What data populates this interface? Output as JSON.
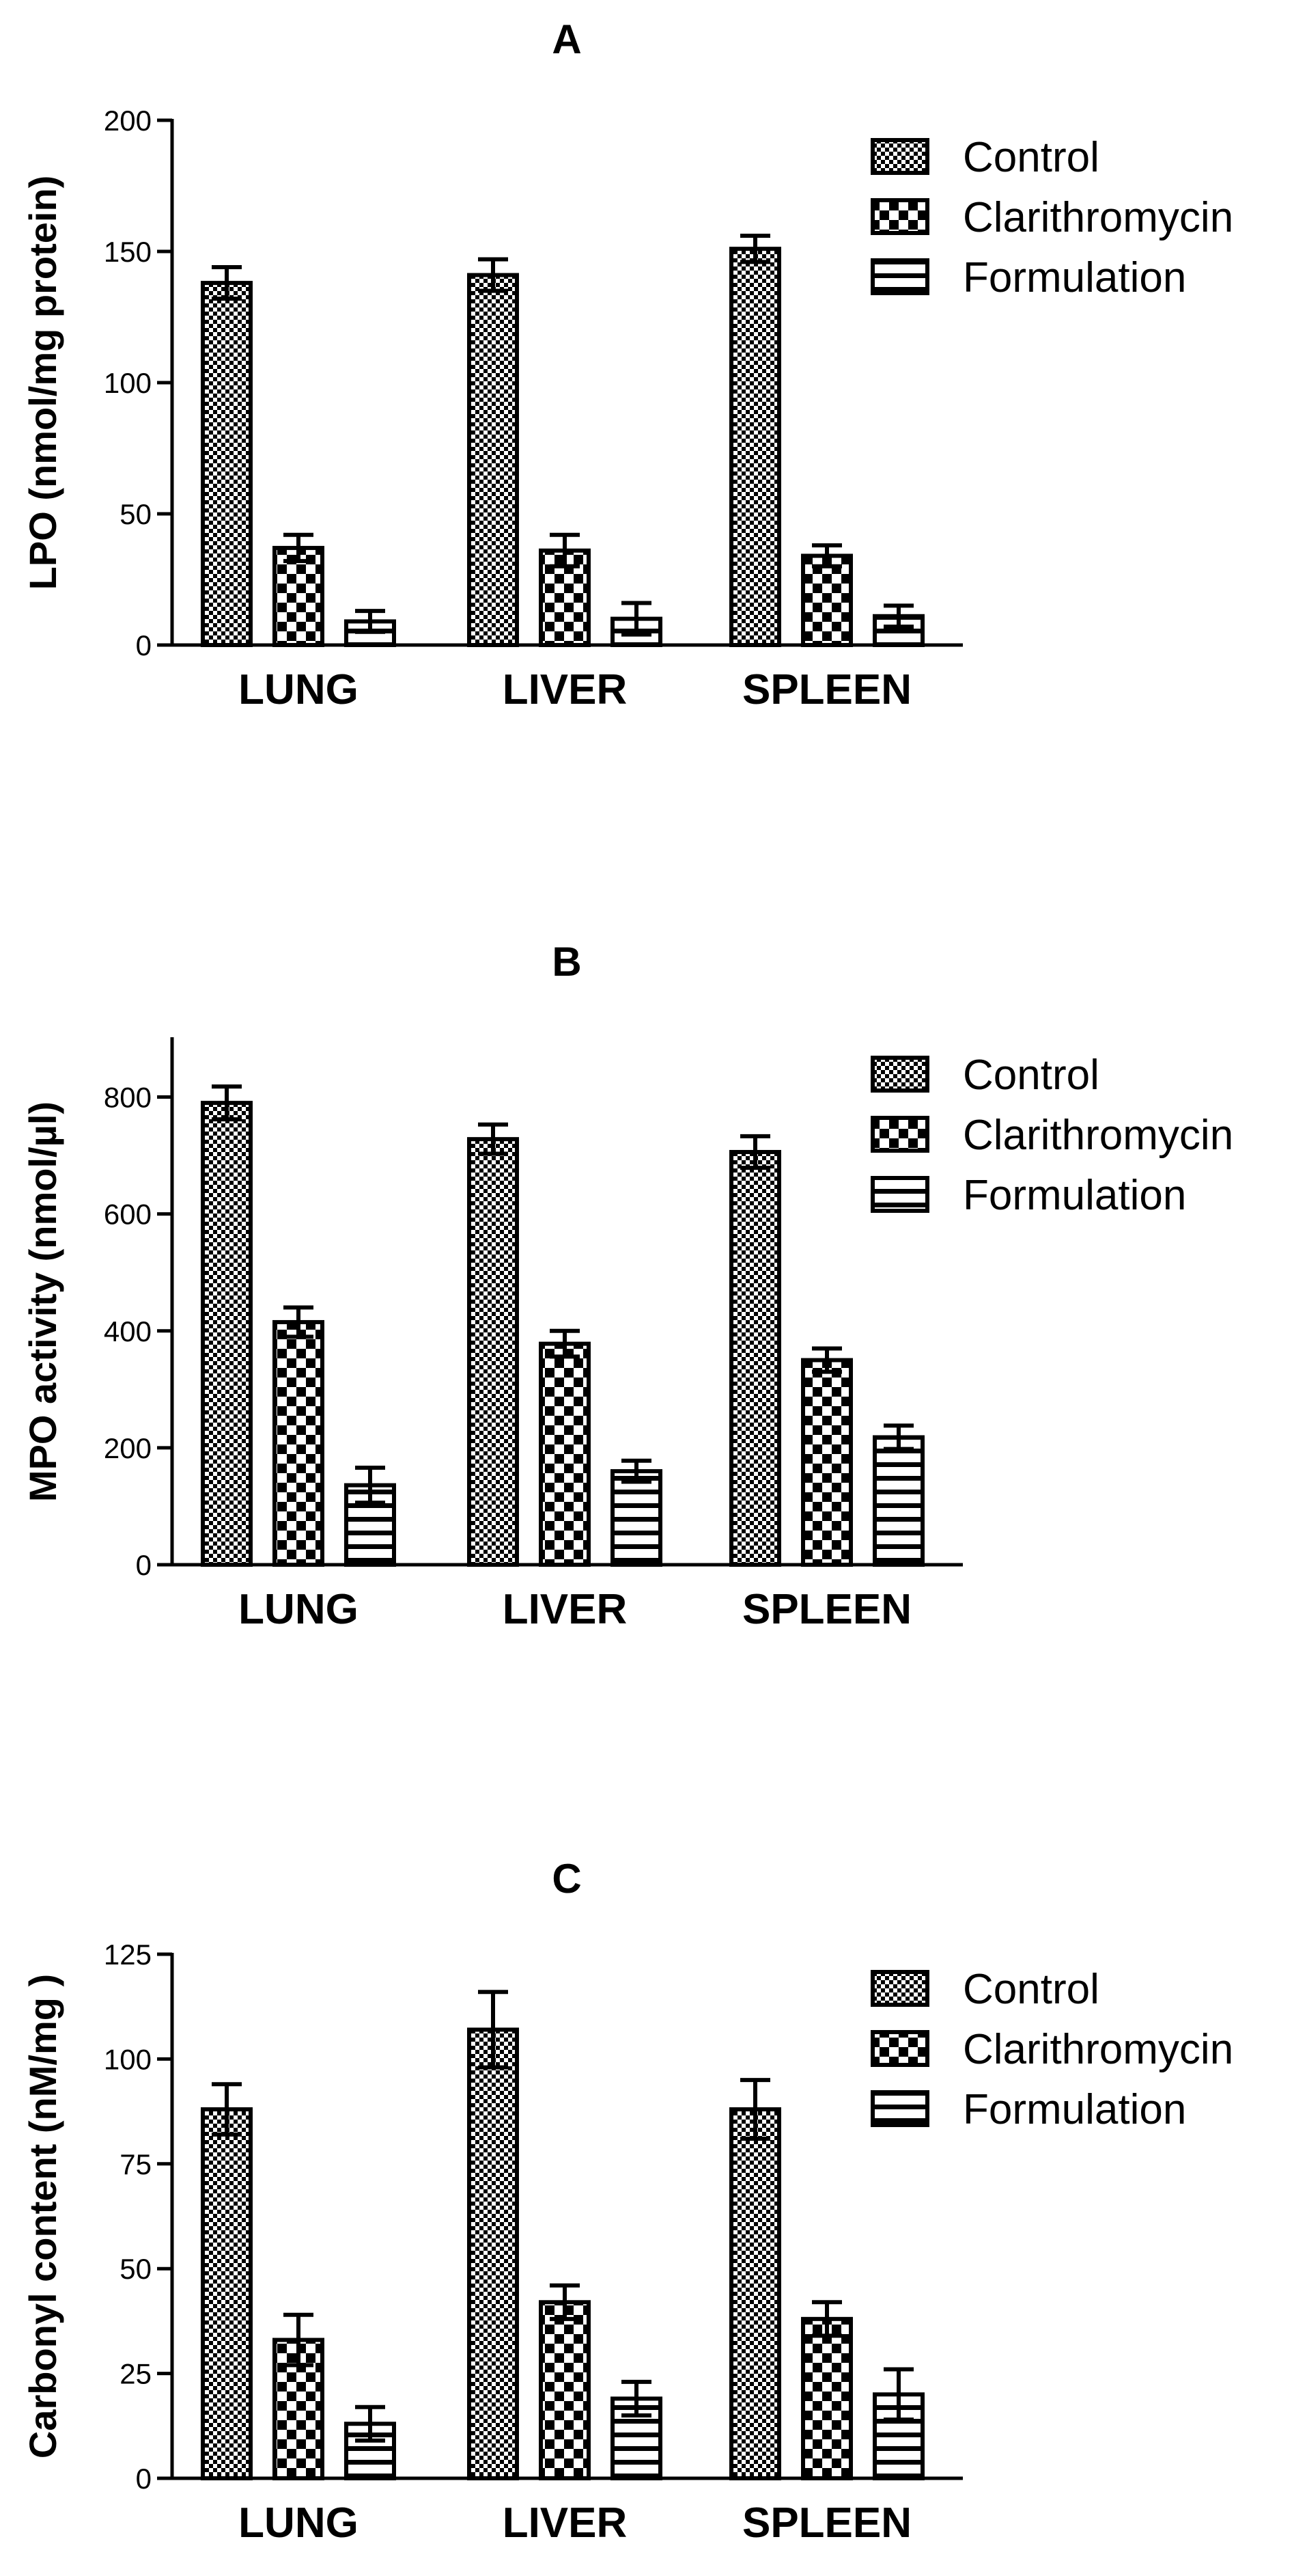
{
  "chart_data": [
    {
      "type": "bar",
      "title": "A",
      "xlabel": "",
      "ylabel": "LPO (nmol/mg protein)",
      "ylim": [
        0,
        200
      ],
      "yticks": [
        "0",
        "50",
        "100",
        "150",
        "200"
      ],
      "categories": [
        "LUNG",
        "LIVER",
        "SPLEEN"
      ],
      "series": [
        {
          "name": "Control",
          "pattern": "fine-checker",
          "values": [
            138,
            141,
            151
          ],
          "errors": [
            6,
            6,
            5
          ]
        },
        {
          "name": "Clarithromycin",
          "pattern": "coarse-checker",
          "values": [
            37,
            36,
            34
          ],
          "errors": [
            5,
            6,
            4
          ]
        },
        {
          "name": "Formulation",
          "pattern": "horizontal-stripes",
          "values": [
            9,
            10,
            11
          ],
          "errors": [
            4,
            6,
            4
          ]
        }
      ],
      "legend": "top-right",
      "grid": false
    },
    {
      "type": "bar",
      "title": "B",
      "xlabel": "",
      "ylabel": "MPO activity (nmol/µl)",
      "ylim": [
        0,
        900
      ],
      "yticks": [
        "0",
        "200",
        "400",
        "600",
        "800"
      ],
      "categories": [
        "LUNG",
        "LIVER",
        "SPLEEN"
      ],
      "series": [
        {
          "name": "Control",
          "pattern": "fine-checker",
          "values": [
            790,
            728,
            706
          ],
          "errors": [
            28,
            25,
            27
          ]
        },
        {
          "name": "Clarithromycin",
          "pattern": "coarse-checker",
          "values": [
            415,
            378,
            350
          ],
          "errors": [
            25,
            22,
            20
          ]
        },
        {
          "name": "Formulation",
          "pattern": "horizontal-stripes",
          "values": [
            136,
            160,
            218
          ],
          "errors": [
            30,
            18,
            20
          ]
        }
      ],
      "legend": "top-right",
      "grid": false
    },
    {
      "type": "bar",
      "title": "C",
      "xlabel": "",
      "ylabel": "Carbonyl content (nM/mg )",
      "ylim": [
        0,
        125
      ],
      "yticks": [
        "0",
        "25",
        "50",
        "75",
        "100",
        "125"
      ],
      "categories": [
        "LUNG",
        "LIVER",
        "SPLEEN"
      ],
      "series": [
        {
          "name": "Control",
          "pattern": "fine-checker",
          "values": [
            88,
            107,
            88
          ],
          "errors": [
            6,
            9,
            7
          ]
        },
        {
          "name": "Clarithromycin",
          "pattern": "coarse-checker",
          "values": [
            33,
            42,
            38
          ],
          "errors": [
            6,
            4,
            4
          ]
        },
        {
          "name": "Formulation",
          "pattern": "horizontal-stripes",
          "values": [
            13,
            19,
            20
          ],
          "errors": [
            4,
            4,
            6
          ]
        }
      ],
      "legend": "top-right",
      "grid": false
    }
  ]
}
